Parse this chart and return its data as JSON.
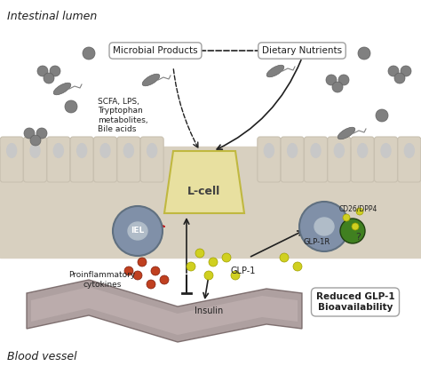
{
  "bg_color": "#f0f0f0",
  "intestinal_lumen_label": "Intestinal lumen",
  "blood_vessel_label": "Blood vessel",
  "microbial_products_label": "Microbial Products",
  "dietary_nutrients_label": "Dietary Nutrients",
  "scfa_label": "SCFA, LPS,\nTryptophan\nmetabolites,\nBile acids",
  "lcell_label": "L-cell",
  "iel_label": "IEL",
  "glp1_label": "GLP-1",
  "glp1r_label": "GLP-1R",
  "cd26_label": "CD26/DPP4",
  "proinflam_label": "Proinflammatory\ncytokines",
  "insulin_label": "Insulin",
  "reduced_label": "Reduced GLP-1\nBioavailability",
  "epithelial_color": "#d8d0c0",
  "epithelial_top_color": "#c8c0b0",
  "lcell_color": "#e8e0a0",
  "lcell_border": "#c0b840",
  "iel_cell_color": "#8090a8",
  "iel_border": "#607080",
  "tcell_color": "#8090a8",
  "nucleus_color": "#c8c8c8",
  "blood_vessel_color": "#a09090",
  "microbe_color": "#808080",
  "glp1_dot_color": "#d0d020",
  "proinflam_dot_color": "#c04020",
  "cd26_color": "#408020",
  "question_mark_color": "#303030",
  "arrow_color": "#202020",
  "dashed_arrow_color": "#202020",
  "red_arrow_color": "#c02020",
  "box_color": "#ffffff",
  "box_border": "#a0a0a0"
}
